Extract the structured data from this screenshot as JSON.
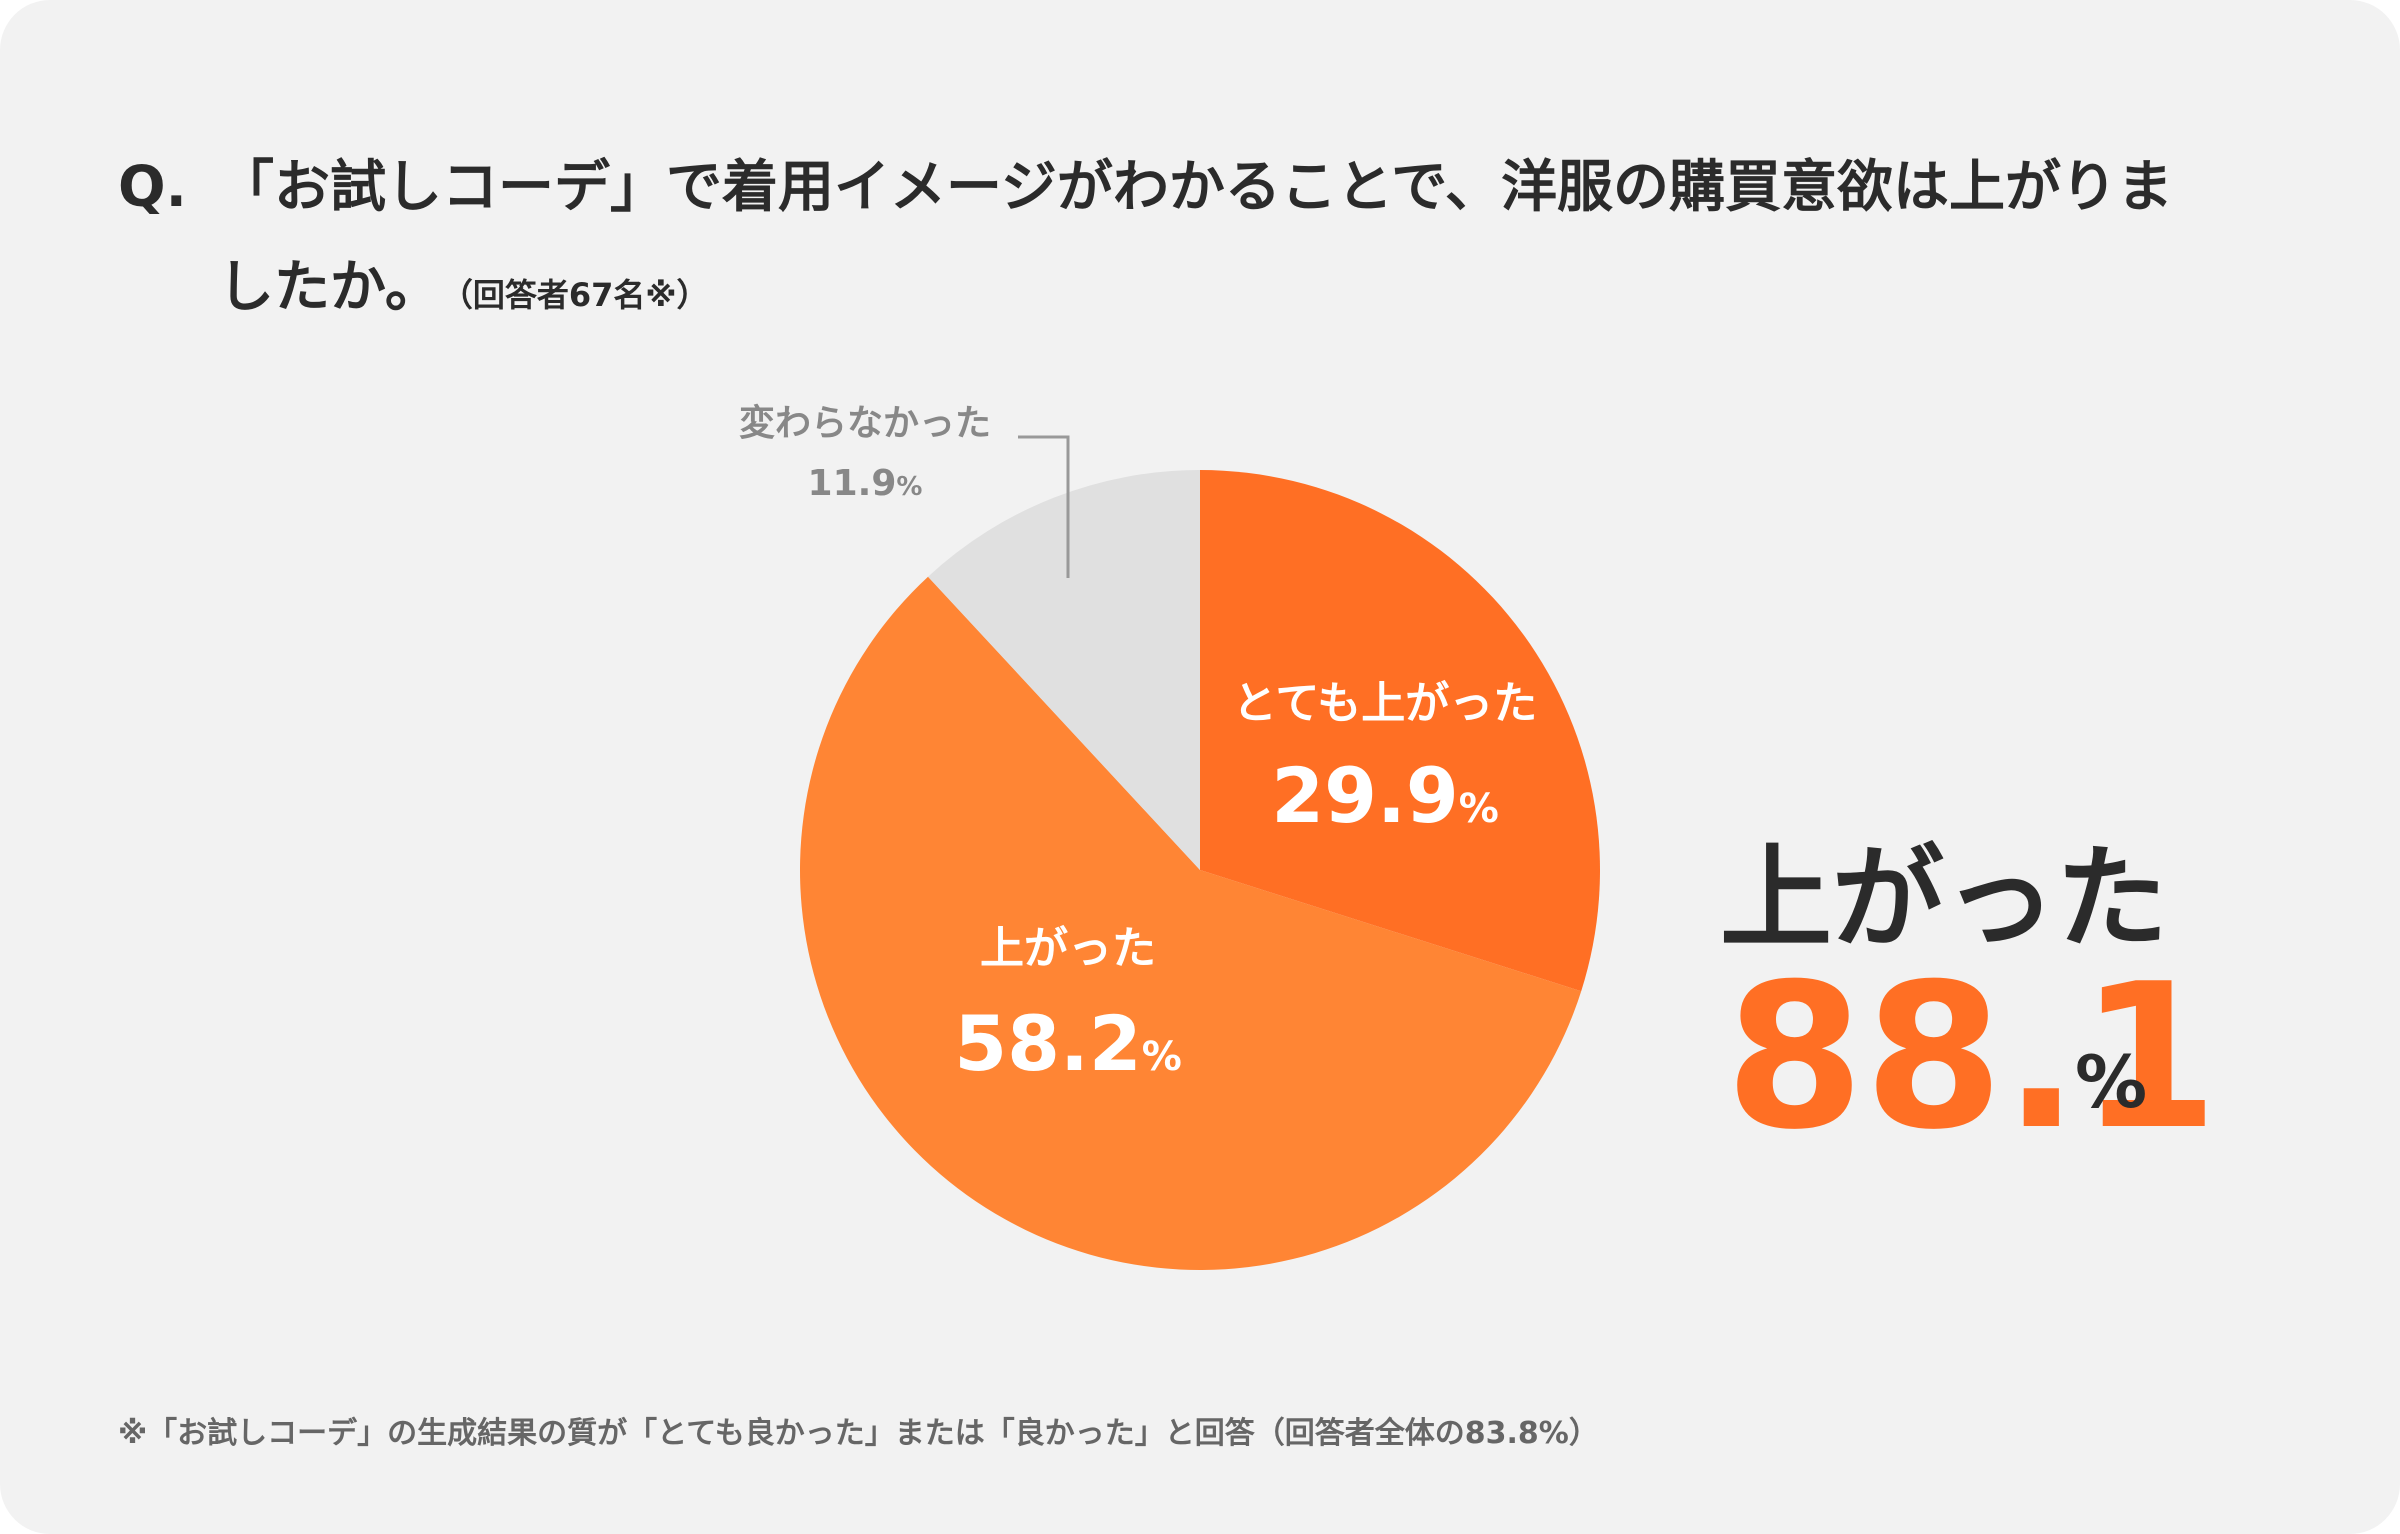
{
  "question": {
    "mark": "Q.",
    "line1": "「お試しコーデ」で着用イメージがわかることで、洋服の購買意欲は上がりま",
    "line2": "したか。",
    "note": "（回答者67名※）"
  },
  "summary": {
    "label": "上がった",
    "value": "88.1",
    "unit": "%"
  },
  "footnote": "※「お試しコーデ」の生成結果の質が「とても良かった」または「良かった」と回答（回答者全体の83.8%）",
  "chart_data": {
    "type": "pie",
    "start_angle": "12 o'clock, clockwise",
    "slices": [
      {
        "label": "とても上がった",
        "value": 29.9,
        "display": "29.9",
        "unit": "%",
        "color": "#ff6f24",
        "label_color": "#ffffff"
      },
      {
        "label": "上がった",
        "value": 58.2,
        "display": "58.2",
        "unit": "%",
        "color": "#ff8534",
        "label_color": "#ffffff"
      },
      {
        "label": "変わらなかった",
        "value": 11.9,
        "display": "11.9",
        "unit": "%",
        "color": "#e0e0e0",
        "label_color": "#888888"
      }
    ]
  }
}
